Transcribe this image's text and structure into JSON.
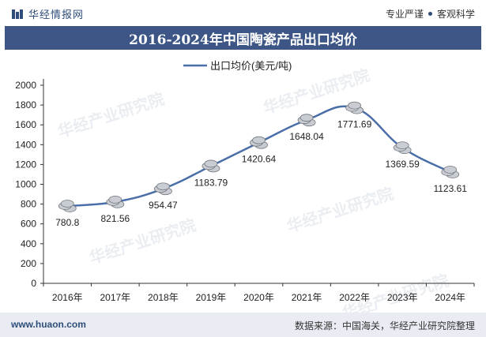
{
  "header": {
    "brand": "华经情报网",
    "tagline_left": "专业严谨",
    "tagline_right": "客观科学"
  },
  "footer": {
    "url": "www.huaon.com",
    "source": "数据来源：中国海关，华经产业研究院整理"
  },
  "watermark": "华经产业研究院",
  "colors": {
    "title_bg": "#3d5686",
    "line": "#4a6ea8",
    "axis": "#333333"
  },
  "chart_data": {
    "type": "line",
    "title": "2016-2024年中国陶瓷产品出口均价",
    "categories": [
      "2016年",
      "2017年",
      "2018年",
      "2019年",
      "2020年",
      "2021年",
      "2022年",
      "2023年",
      "2024年"
    ],
    "series": [
      {
        "name": "出口均价(美元/吨)",
        "values": [
          780.8,
          821.56,
          954.47,
          1183.79,
          1420.64,
          1648.04,
          1771.69,
          1369.59,
          1123.61
        ]
      }
    ],
    "data_labels": [
      "780.8",
      "821.56",
      "954.47",
      "1183.79",
      "1420.64",
      "1648.04",
      "1771.69",
      "1369.59",
      "1123.61"
    ],
    "y_ticks": [
      "0",
      "200",
      "400",
      "600",
      "800",
      "1000",
      "1200",
      "1400",
      "1600",
      "1800",
      "2000"
    ],
    "ylim": [
      0,
      2000
    ],
    "legend_position": "top-center",
    "grid": false
  }
}
